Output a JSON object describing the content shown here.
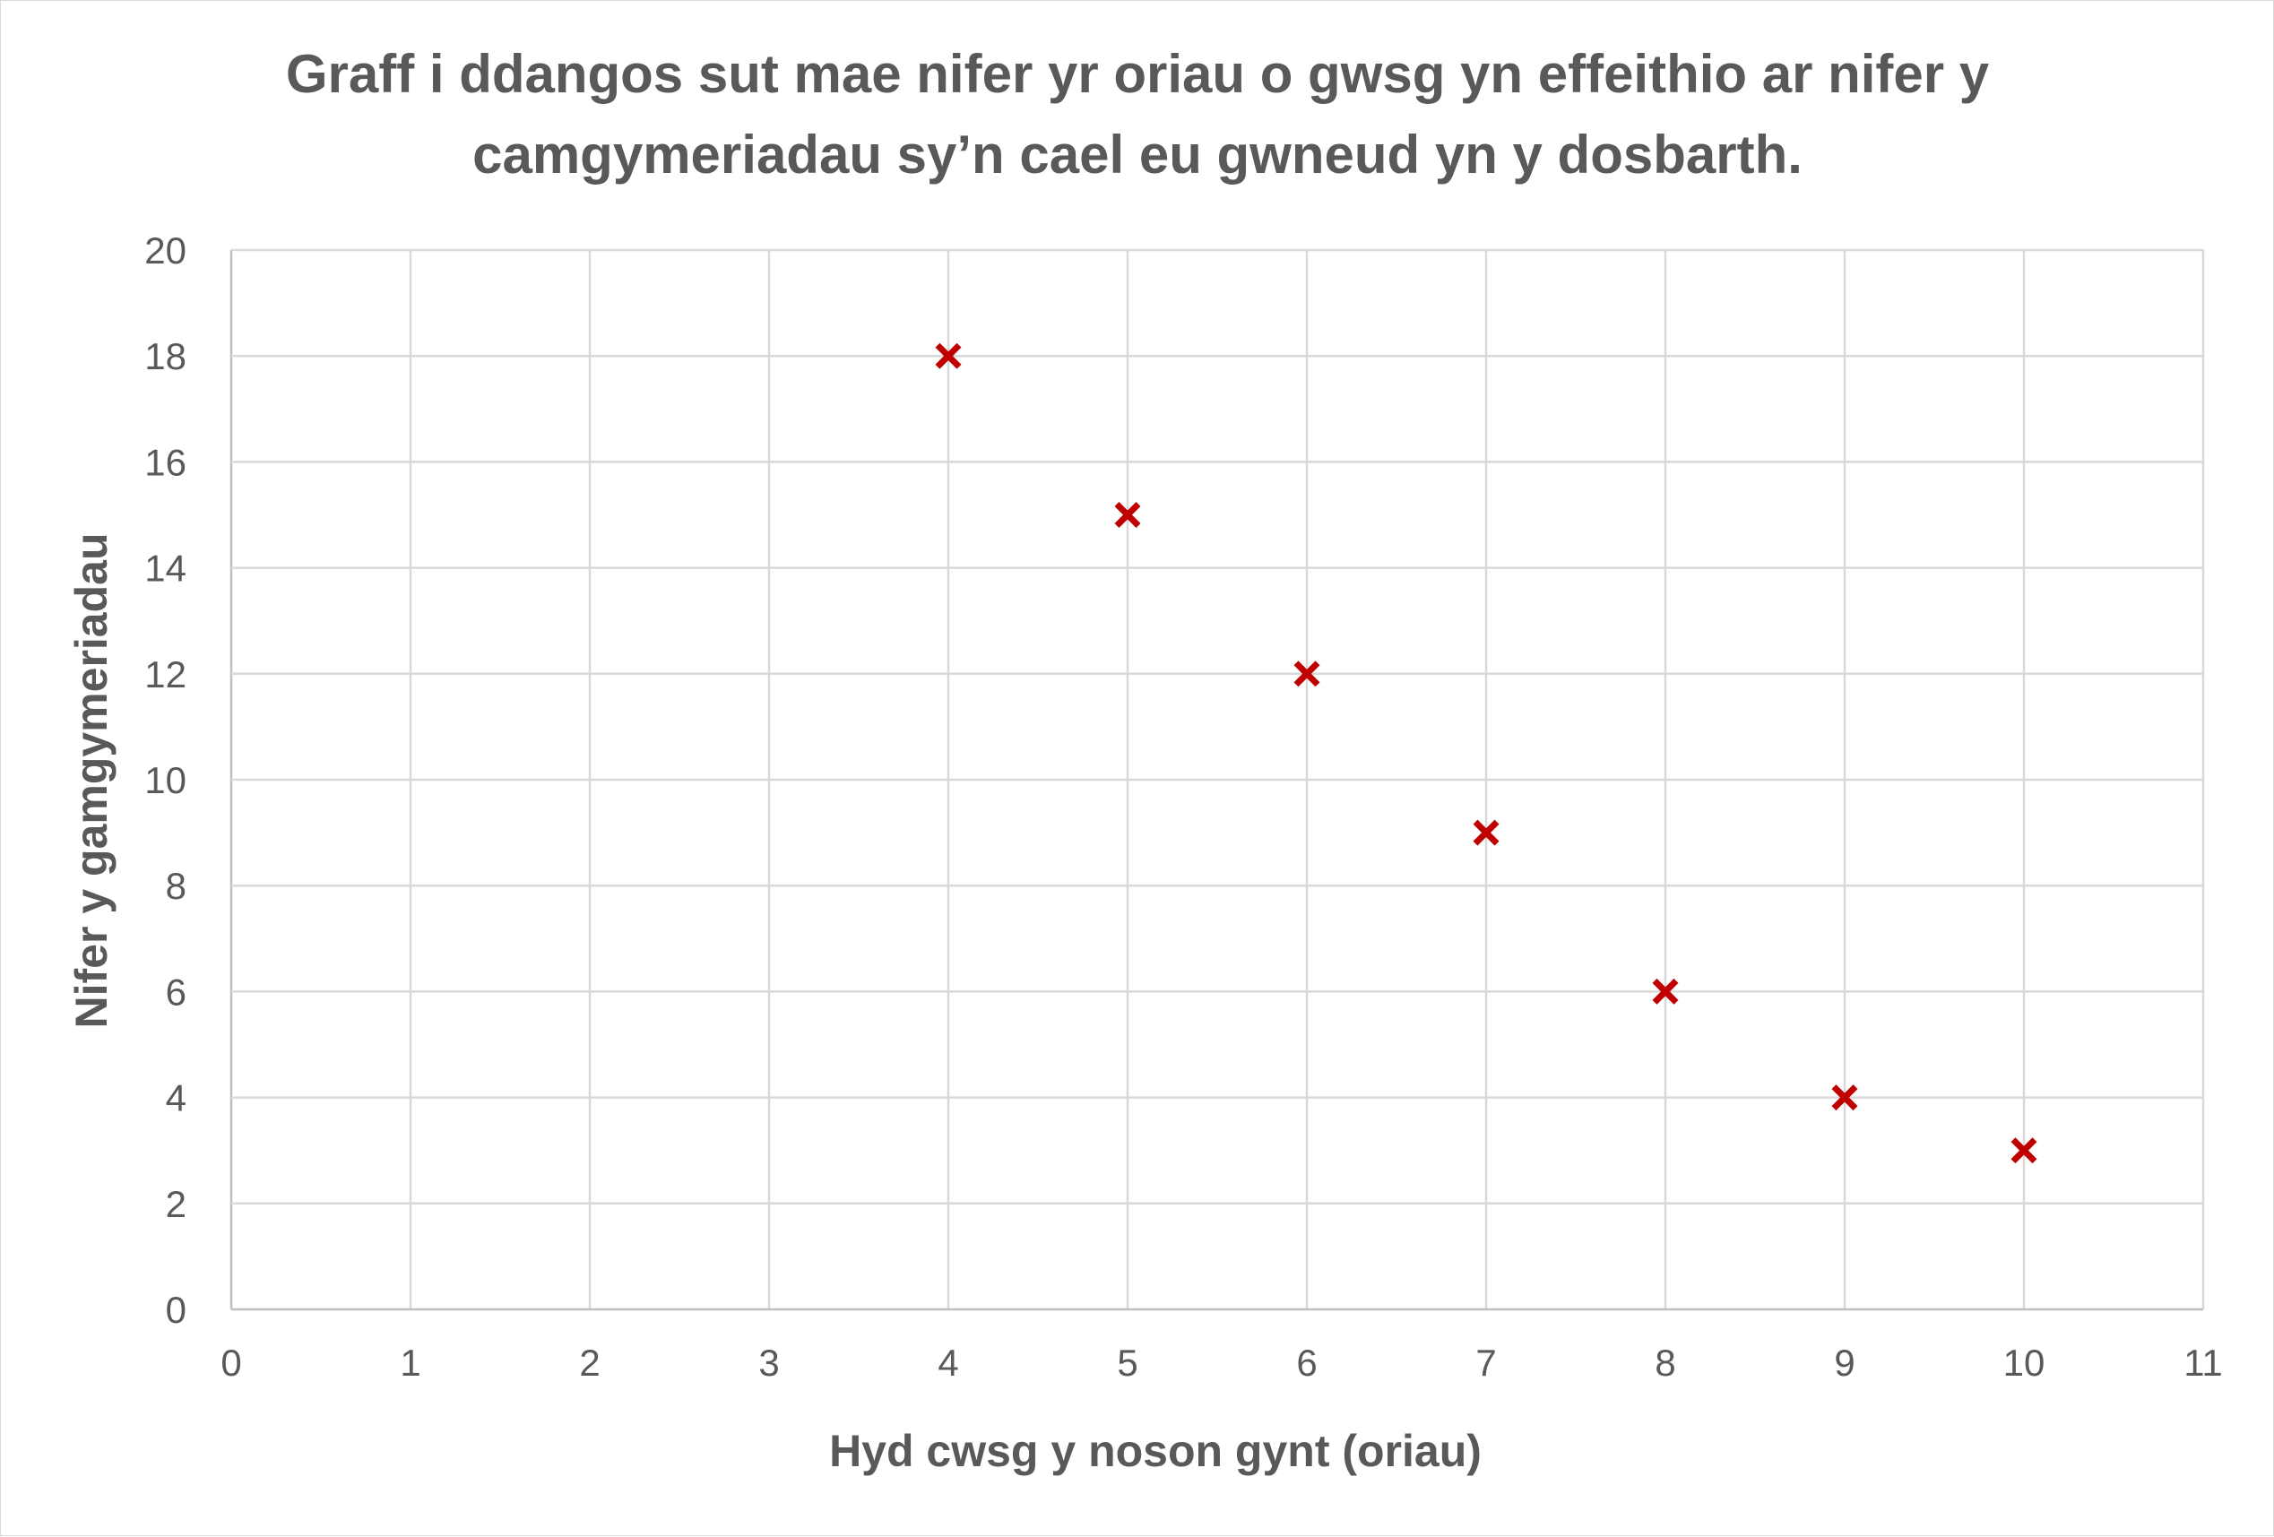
{
  "chart_data": {
    "type": "scatter",
    "title_lines": [
      "Graff i ddangos sut mae nifer yr oriau o gwsg yn effeithio ar nifer y",
      "camgymeriadau sy’n cael eu gwneud yn y dosbarth."
    ],
    "xlabel": "Hyd cwsg y noson gynt (oriau)",
    "ylabel": "Nifer y gamgymeriadau",
    "xlim": [
      0,
      11
    ],
    "ylim": [
      0,
      20
    ],
    "x_ticks": [
      0,
      1,
      2,
      3,
      4,
      5,
      6,
      7,
      8,
      9,
      10,
      11
    ],
    "y_ticks": [
      0,
      2,
      4,
      6,
      8,
      10,
      12,
      14,
      16,
      18,
      20
    ],
    "grid": true,
    "marker": "x",
    "marker_color": "#c00000",
    "points": [
      {
        "x": 4,
        "y": 18
      },
      {
        "x": 5,
        "y": 15
      },
      {
        "x": 6,
        "y": 12
      },
      {
        "x": 7,
        "y": 9
      },
      {
        "x": 8,
        "y": 6
      },
      {
        "x": 9,
        "y": 4
      },
      {
        "x": 10,
        "y": 3
      }
    ]
  }
}
